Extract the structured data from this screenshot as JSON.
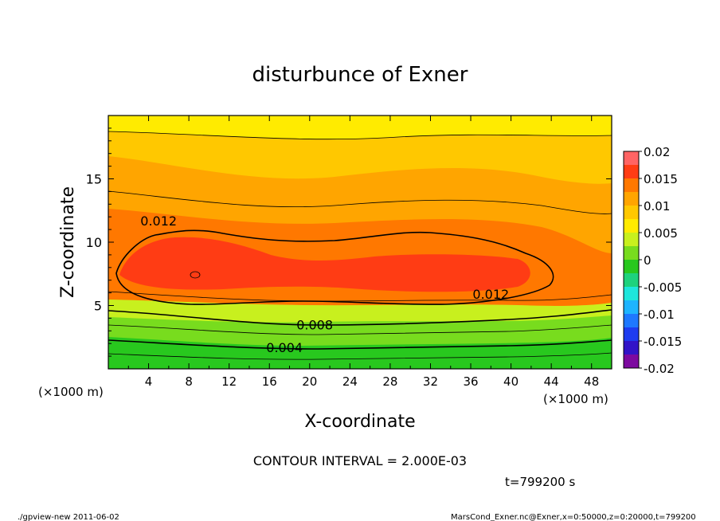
{
  "chart_data": {
    "type": "contour",
    "title": "disturbunce of Exner",
    "xlabel": "X-coordinate",
    "ylabel": "Z-coordinate",
    "x_unit_left": "(×1000 m)",
    "x_unit_right": "(×1000 m)",
    "xlim": [
      0,
      50
    ],
    "ylim": [
      0,
      20
    ],
    "x_ticks": [
      4,
      8,
      12,
      16,
      20,
      24,
      28,
      32,
      36,
      40,
      44,
      48
    ],
    "y_ticks": [
      5,
      10,
      15
    ],
    "colorbar": {
      "levels": [
        -0.02,
        -0.0175,
        -0.015,
        -0.0125,
        -0.01,
        -0.0075,
        -0.005,
        -0.0025,
        0,
        0.0025,
        0.005,
        0.0075,
        0.01,
        0.0125,
        0.015,
        0.0175,
        0.02
      ],
      "tick_labels": [
        "0.02",
        "0.015",
        "0.01",
        "0.005",
        "0",
        "-0.005",
        "-0.01",
        "-0.015",
        "-0.02"
      ],
      "colors": [
        "#7d0aa0",
        "#3214c8",
        "#1e3cf0",
        "#1e78ff",
        "#1eb4ff",
        "#1ee6dc",
        "#1ed27d",
        "#28c81e",
        "#78dc1e",
        "#c8f01e",
        "#ffeb00",
        "#ffc800",
        "#ffa500",
        "#ff7800",
        "#ff3c14",
        "#ff6464",
        "#ff9696"
      ]
    },
    "contour_labels": [
      {
        "text": "0.012",
        "x": 5.0,
        "z": 11.7
      },
      {
        "text": "0.012",
        "x": 38.0,
        "z": 5.9
      },
      {
        "text": "0.008",
        "x": 20.5,
        "z": 3.5
      },
      {
        "text": "0.004",
        "x": 17.5,
        "z": 1.7
      }
    ],
    "contour_interval_text": "CONTOUR INTERVAL = 2.000E-03",
    "time_text": "t=799200 s"
  },
  "footer": {
    "left": "./gpview-new  2011-06-02",
    "right": "MarsCond_Exner.nc@Exner,x=0:50000,z=0:20000,t=799200"
  }
}
